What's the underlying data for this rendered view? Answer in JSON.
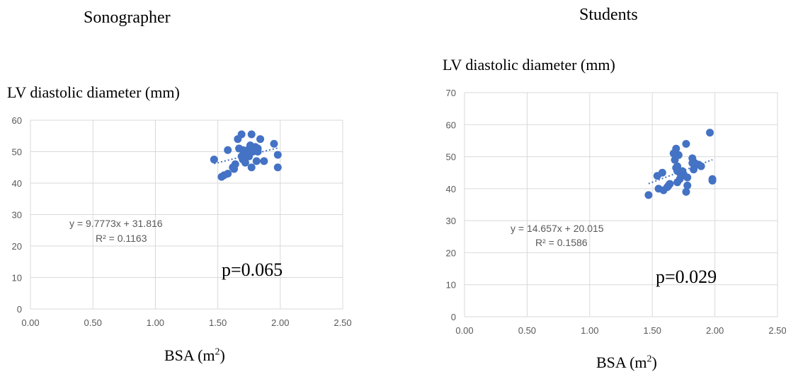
{
  "chart_data": [
    {
      "type": "scatter",
      "panel_title": "Sonographer",
      "title": "LV diastolic diameter (mm)",
      "xlabel": "BSA (m",
      "xlabel_sup": "2",
      "xlabel_close": ")",
      "xlim": [
        0,
        2.5
      ],
      "ylim": [
        0,
        60
      ],
      "x_ticks": [
        "0.00",
        "0.50",
        "1.00",
        "1.50",
        "2.00",
        "2.50"
      ],
      "y_ticks": [
        "0",
        "10",
        "20",
        "30",
        "40",
        "50",
        "60"
      ],
      "grid": true,
      "trendline": {
        "slope": 9.7773,
        "intercept": 31.816
      },
      "equation": "y = 9.7773x + 31.816",
      "r_squared": "R² = 0.1163",
      "p_value": "p=0.065",
      "x": [
        1.47,
        1.53,
        1.55,
        1.58,
        1.58,
        1.62,
        1.63,
        1.64,
        1.66,
        1.67,
        1.69,
        1.69,
        1.7,
        1.7,
        1.71,
        1.72,
        1.72,
        1.73,
        1.74,
        1.75,
        1.76,
        1.77,
        1.77,
        1.78,
        1.8,
        1.81,
        1.82,
        1.82,
        1.84,
        1.87,
        1.95,
        1.98,
        1.98
      ],
      "y": [
        47.5,
        42,
        42.5,
        43,
        50.5,
        45,
        44.5,
        46,
        54,
        51,
        55.5,
        48.5,
        50.5,
        47.5,
        49.5,
        46.5,
        48,
        50,
        50.5,
        48.5,
        52,
        55.5,
        45,
        50,
        51.5,
        47,
        51,
        50,
        54,
        47,
        52.5,
        49,
        45
      ]
    },
    {
      "type": "scatter",
      "panel_title": "Students",
      "title": "LV diastolic diameter (mm)",
      "xlabel": "BSA (m",
      "xlabel_sup": "2",
      "xlabel_close": ")",
      "xlim": [
        0,
        2.5
      ],
      "ylim": [
        0,
        70
      ],
      "x_ticks": [
        "0.00",
        "0.50",
        "1.00",
        "1.50",
        "2.00",
        "2.50"
      ],
      "y_ticks": [
        "0",
        "10",
        "20",
        "30",
        "40",
        "50",
        "60",
        "70"
      ],
      "grid": true,
      "trendline": {
        "slope": 14.657,
        "intercept": 20.015
      },
      "equation": "y = 14.657x + 20.015",
      "r_squared": "R² = 0.1586",
      "p_value": "p=0.029",
      "x": [
        1.47,
        1.54,
        1.55,
        1.58,
        1.59,
        1.62,
        1.63,
        1.64,
        1.67,
        1.68,
        1.69,
        1.69,
        1.7,
        1.7,
        1.7,
        1.71,
        1.72,
        1.72,
        1.73,
        1.74,
        1.75,
        1.77,
        1.77,
        1.78,
        1.78,
        1.82,
        1.82,
        1.83,
        1.84,
        1.87,
        1.89,
        1.96,
        1.98,
        1.98
      ],
      "y": [
        38,
        44,
        40,
        45,
        39.5,
        40.5,
        41,
        41.5,
        51,
        49,
        52.5,
        46.5,
        47,
        42,
        45.5,
        50.5,
        43,
        45,
        44,
        45.5,
        44.5,
        39,
        54,
        41,
        43.5,
        49.5,
        48,
        46,
        48,
        47.5,
        47,
        57.5,
        42.5,
        43
      ]
    }
  ]
}
